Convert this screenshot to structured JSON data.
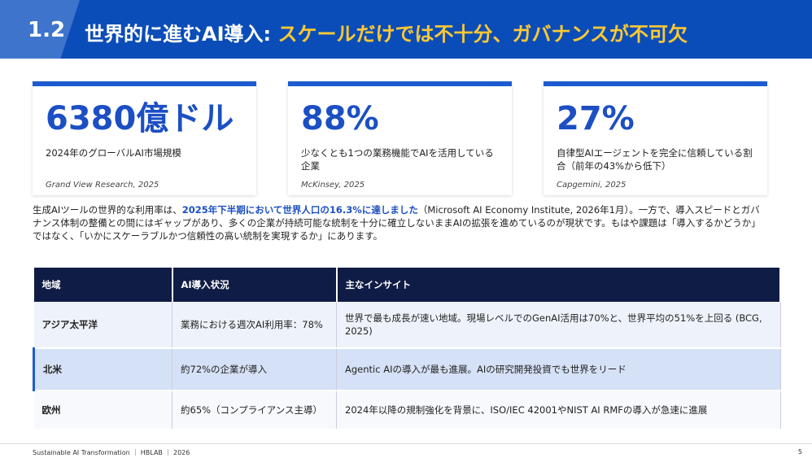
{
  "header": {
    "section": "1.2",
    "title_main": "世界的に進むAI導入: ",
    "title_accent": "スケールだけでは不十分、ガバナンスが不可欠"
  },
  "cards": [
    {
      "stat": "6380億ドル",
      "description": "2024年のグローバルAI市場規模",
      "source": "Grand View Research, 2025"
    },
    {
      "stat": "88%",
      "description": "少なくとも1つの業務機能でAIを活用している企業",
      "source": "McKinsey, 2025"
    },
    {
      "stat": "27%",
      "description": "自律型AIエージェントを完全に信頼している割合（前年の43%から低下）",
      "source": "Capgemini, 2025"
    }
  ],
  "paragraph": {
    "before": "生成AIツールの世界的な利用率は、",
    "highlight": "2025年下半期において世界人口の16.3%に達しました",
    "after": "（Microsoft AI Economy Institute, 2026年1月）。一方で、導入スピードとガバナンス体制の整備との間にはギャップがあり、多くの企業が持続可能な統制を十分に確立しないままAIの拡張を進めているのが現状です。もはや課題は「導入するかどうか」ではなく、「いかにスケーラブルかつ信頼性の高い統制を実現するか」にあります。"
  },
  "table": {
    "headers": [
      "地域",
      "AI導入状況",
      "主なインサイト"
    ],
    "rows": [
      [
        "アジア太平洋",
        "業務における週次AI利用率：78%",
        "世界で最も成長が速い地域。現場レベルでのGenAI活用は70%と、世界平均の51%を上回る (BCG, 2025)"
      ],
      [
        "北米",
        "約72%の企業が導入",
        "Agentic AIの導入が最も進展。AIの研究開発投資でも世界をリード"
      ],
      [
        "欧州",
        "約65%（コンプライアンス主導）",
        "2024年以降の規制強化を背景に、ISO/IEC 42001やNIST AI RMFの導入が急速に進展"
      ]
    ]
  },
  "footer": {
    "text": "Sustainable AI Transformation ｜ HBLAB ｜ 2026",
    "page": "5"
  }
}
